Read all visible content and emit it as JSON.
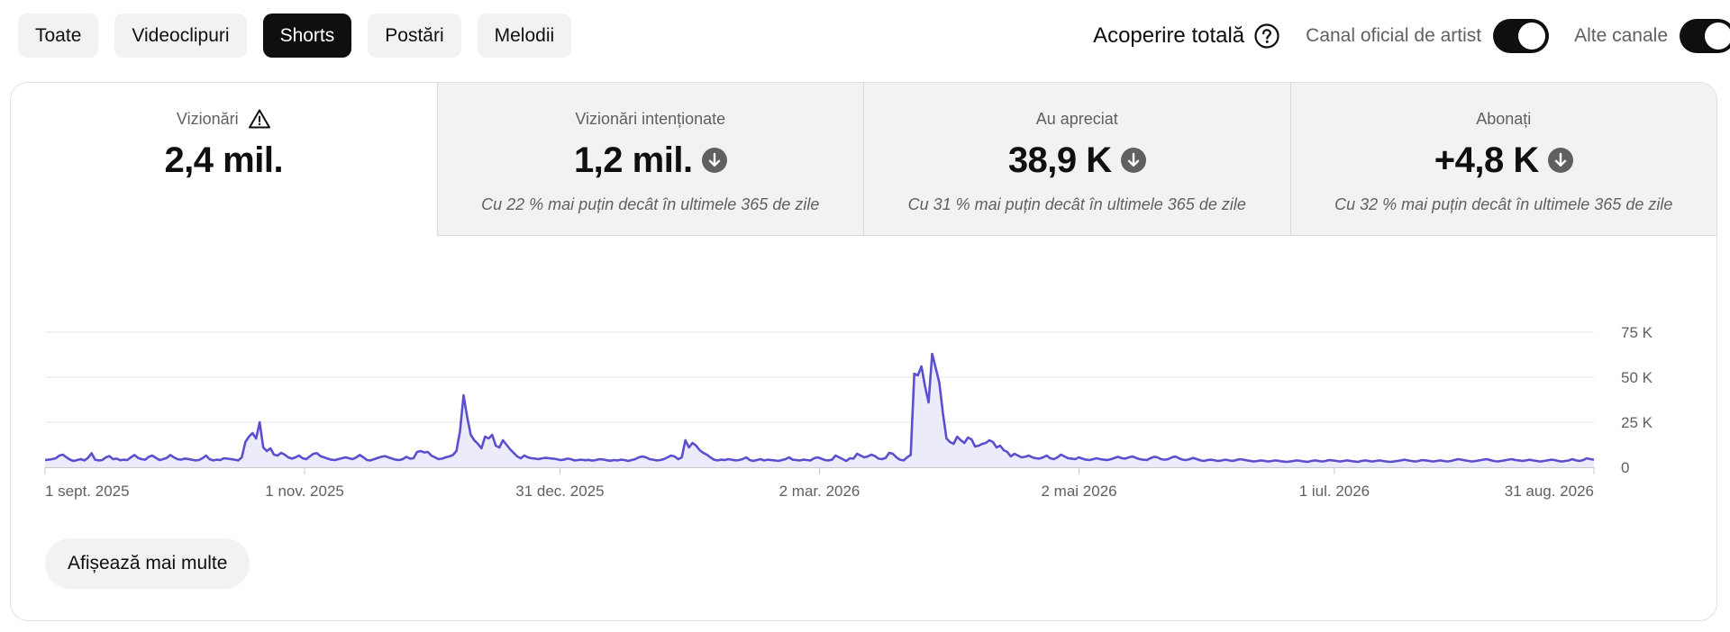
{
  "filters": [
    {
      "label": "Toate",
      "active": false
    },
    {
      "label": "Videoclipuri",
      "active": false
    },
    {
      "label": "Shorts",
      "active": true
    },
    {
      "label": "Postări",
      "active": false
    },
    {
      "label": "Melodii",
      "active": false
    }
  ],
  "header": {
    "total_label": "Acoperire totală",
    "toggle1_label": "Canal oficial de artist",
    "toggle1_on": true,
    "toggle2_label": "Alte canale",
    "toggle2_on": true
  },
  "metrics": [
    {
      "title": "Vizionări",
      "value": "2,4 mil.",
      "note": "",
      "icon": "warning-icon"
    },
    {
      "title": "Vizionări intenționate",
      "value": "1,2 mil.",
      "note": "Cu 22 % mai puțin decât în ultimele 365 de zile",
      "icon": "arrow-down-icon"
    },
    {
      "title": "Au apreciat",
      "value": "38,9 K",
      "note": "Cu 31 % mai puțin decât în ultimele 365 de zile",
      "icon": "arrow-down-icon"
    },
    {
      "title": "Abonați",
      "value": "+4,8 K",
      "note": "Cu 32 % mai puțin decât în ultimele 365 de zile",
      "icon": "arrow-down-icon"
    }
  ],
  "chart_data": {
    "type": "area",
    "title": "",
    "xlabel": "",
    "ylabel": "",
    "ylim": [
      0,
      75000
    ],
    "y_ticks": [
      0,
      25000,
      50000,
      75000
    ],
    "y_tick_labels": [
      "0",
      "25 K",
      "50 K",
      "75 K"
    ],
    "x_tick_labels": [
      "1 sept. 2025",
      "1 nov. 2025",
      "31 dec. 2025",
      "2 mar. 2026",
      "2 mai 2026",
      "1 iul. 2026",
      "31 aug. 2026"
    ],
    "x_tick_days": [
      0,
      61,
      121,
      182,
      243,
      303,
      364
    ],
    "grid": true,
    "line_color": "#5b4fcf",
    "fill_color": "#ecebfa",
    "series": [
      {
        "name": "",
        "values": [
          4000,
          4200,
          4500,
          5000,
          6500,
          7000,
          5500,
          4200,
          3500,
          4000,
          4500,
          3800,
          5200,
          7800,
          4200,
          3800,
          4000,
          5500,
          6200,
          4500,
          4800,
          3900,
          4200,
          4000,
          5500,
          6800,
          5200,
          4500,
          4200,
          5800,
          6500,
          5200,
          4000,
          4500,
          5200,
          6800,
          5500,
          4500,
          4200,
          4800,
          4600,
          4200,
          3800,
          4000,
          5000,
          6500,
          4500,
          3800,
          4200,
          4000,
          5000,
          4800,
          4500,
          4200,
          3800,
          5500,
          14000,
          17000,
          19000,
          16000,
          25000,
          11000,
          9000,
          10500,
          7000,
          6500,
          8000,
          7000,
          5500,
          4800,
          5500,
          6500,
          5000,
          4500,
          6000,
          7500,
          7800,
          6200,
          5500,
          4800,
          4200,
          4000,
          4500,
          5000,
          5500,
          5000,
          4500,
          5500,
          6800,
          5500,
          4000,
          3800,
          4500,
          5200,
          5800,
          6200,
          5500,
          4800,
          4200,
          4000,
          4500,
          5800,
          4800,
          5000,
          8500,
          9000,
          8200,
          8500,
          6500,
          5500,
          4500,
          4800,
          5500,
          6000,
          6800,
          9000,
          20000,
          40000,
          28000,
          18000,
          15000,
          13000,
          10500,
          17000,
          16000,
          18000,
          12000,
          11000,
          15000,
          12500,
          10000,
          8000,
          6000,
          5000,
          6500,
          5500,
          5000,
          4800,
          4500,
          5000,
          5200,
          5000,
          4800,
          4500,
          4000,
          4200,
          4800,
          4500,
          3800,
          4000,
          4200,
          3900,
          4100,
          3700,
          4000,
          4500,
          4300,
          3900,
          3600,
          4000,
          3800,
          4200,
          4000,
          3500,
          4000,
          4500,
          5500,
          6000,
          5500,
          4500,
          4200,
          3800,
          4000,
          4500,
          5500,
          6500,
          6000,
          4500,
          5500,
          15000,
          11000,
          13500,
          12000,
          9500,
          8000,
          7000,
          5500,
          4200,
          3800,
          4200,
          4000,
          4500,
          4200,
          3800,
          4000,
          4500,
          5500,
          4000,
          3500,
          4000,
          4500,
          3800,
          4200,
          4000,
          3800,
          3500,
          4000,
          4500,
          5500,
          4200,
          4000,
          3800,
          4200,
          4000,
          3800,
          5000,
          5500,
          4800,
          4000,
          3800,
          4200,
          6500,
          5500,
          4500,
          3500,
          5000,
          4800,
          7500,
          6500,
          5500,
          6000,
          7000,
          6200,
          4800,
          4500,
          5200,
          8000,
          7500,
          5500,
          4200,
          3800,
          5500,
          6800,
          52000,
          51000,
          56000,
          45000,
          36000,
          63000,
          55000,
          47000,
          30000,
          16000,
          14000,
          13000,
          17000,
          15000,
          13500,
          16500,
          15500,
          11500,
          12000,
          13000,
          13500,
          15000,
          14000,
          11000,
          12000,
          9500,
          8500,
          6000,
          7500,
          6500,
          5500,
          5800,
          6500,
          5500,
          5000,
          4800,
          5500,
          6500,
          5000,
          4500,
          5500,
          7000,
          6000,
          5000,
          4800,
          4500,
          5500,
          4800,
          4200,
          4000,
          4500,
          5000,
          4500,
          4200,
          4000,
          4500,
          5200,
          5800,
          5000,
          4800,
          5500,
          6000,
          5200,
          4500,
          4200,
          4000,
          5000,
          5800,
          5500,
          4500,
          4200,
          4500,
          5500,
          6000,
          5000,
          4200,
          4000,
          4500,
          5200,
          4500,
          3800,
          3500,
          4000,
          4200,
          3800,
          3500,
          3800,
          4200,
          3800,
          3500,
          4000,
          4500,
          4200,
          3800,
          3500,
          3200,
          3500,
          3800,
          3500,
          3200,
          3500,
          3800,
          3500,
          3200,
          3000,
          3200,
          3500,
          3800,
          3500,
          3200,
          3000,
          3500,
          3800,
          3500,
          3200,
          3500,
          4000,
          3800,
          3500,
          3200,
          3500,
          3800,
          3500,
          3200,
          3000,
          3500,
          3800,
          3500,
          3200,
          3500,
          3800,
          3500,
          3200,
          3000,
          3200,
          3500,
          3800,
          4200,
          3800,
          3500,
          3200,
          3500,
          4000,
          3800,
          3500,
          3200,
          3500,
          3800,
          3500,
          3200,
          3500,
          4000,
          4500,
          4200,
          3800,
          3500,
          3200,
          3500,
          3800,
          4200,
          4500,
          4000,
          3500,
          3200,
          3500,
          3800,
          4200,
          4500,
          4000,
          3800,
          3500,
          3800,
          4200,
          3800,
          3500,
          3200,
          3500,
          3800,
          4200,
          4000,
          3500,
          3200,
          3500,
          3800,
          4500,
          3800,
          3500,
          4000,
          5000,
          4500,
          4200
        ]
      }
    ]
  },
  "more_button": {
    "label": "Afișează mai multe"
  }
}
